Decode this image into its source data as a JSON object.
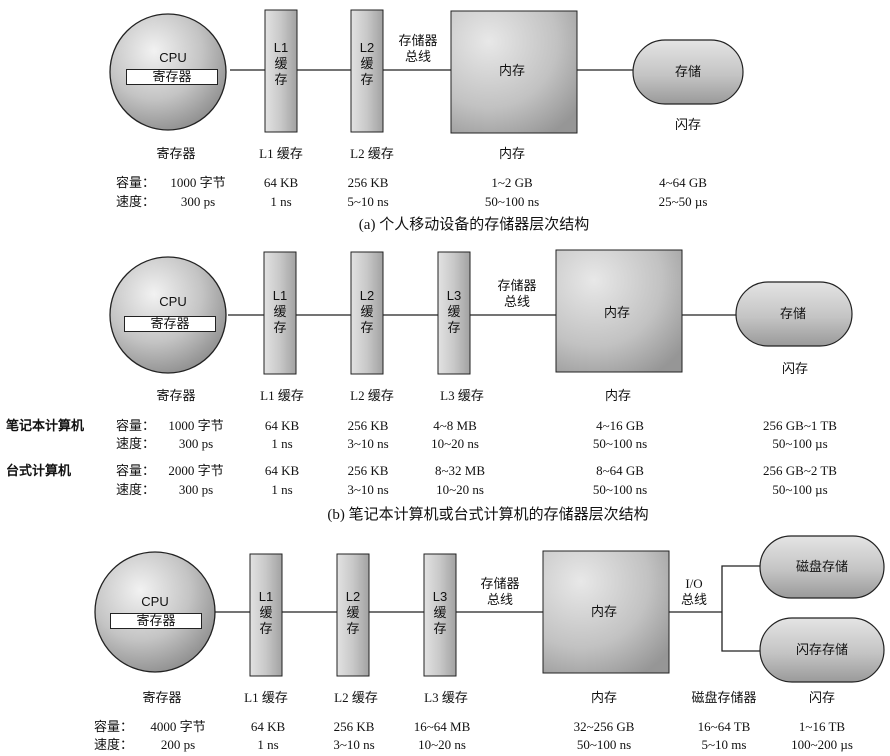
{
  "labels": {
    "cpu": "CPU",
    "registers": "寄存器",
    "l1_short": "L1",
    "l2_short": "L2",
    "l3_short": "L3",
    "cache_ch1": "缓",
    "cache_ch2": "存",
    "l1_cache": "L1 缓存",
    "l2_cache": "L2 缓存",
    "l3_cache": "L3 缓存",
    "memory_bus_1": "存储器",
    "memory_bus_2": "总线",
    "main_memory": "内存",
    "storage": "存储",
    "flash": "闪存",
    "io_1": "I/O",
    "io_2": "总线",
    "disk_storage": "磁盘存储",
    "flash_storage": "闪存存储",
    "disk_storage_device": "磁盘存储器",
    "capacity": "容量：",
    "speed": "速度："
  },
  "panels": {
    "a": {
      "caption": "(a) 个人移动设备的存储器层次结构",
      "capacity": [
        "1000 字节",
        "64 KB",
        "256 KB",
        "1~2 GB",
        "4~64 GB"
      ],
      "speed": [
        "300 ps",
        "1 ns",
        "5~10 ns",
        "50~100 ns",
        "25~50 µs"
      ]
    },
    "b": {
      "caption": "(b) 笔记本计算机或台式计算机的存储器层次结构",
      "laptop": {
        "label": "笔记本计算机",
        "capacity": [
          "1000 字节",
          "64 KB",
          "256 KB",
          "4~8 MB",
          "4~16 GB",
          "256 GB~1 TB"
        ],
        "speed": [
          "300 ps",
          "1 ns",
          "3~10 ns",
          "10~20 ns",
          "50~100 ns",
          "50~100 µs"
        ]
      },
      "desktop": {
        "label": "台式计算机",
        "capacity": [
          "2000 字节",
          "64 KB",
          "256 KB",
          "8~32  MB",
          "8~64 GB",
          "256 GB~2 TB"
        ],
        "speed": [
          "300 ps",
          "1 ns",
          "3~10 ns",
          "10~20 ns",
          "50~100 ns",
          "50~100 µs"
        ]
      }
    },
    "c": {
      "capacity": [
        "4000 字节",
        "64 KB",
        "256 KB",
        "16~64 MB",
        "32~256 GB",
        "16~64 TB",
        "1~16 TB"
      ],
      "speed": [
        "200 ps",
        "1 ns",
        "3~10 ns",
        "10~20 ns",
        "50~100 ns",
        "5~10 ms",
        "100~200 µs"
      ]
    }
  },
  "colors": {
    "fill_light": "#e6e6e6",
    "fill_dark": "#8c8c8c",
    "line": "#222222"
  }
}
